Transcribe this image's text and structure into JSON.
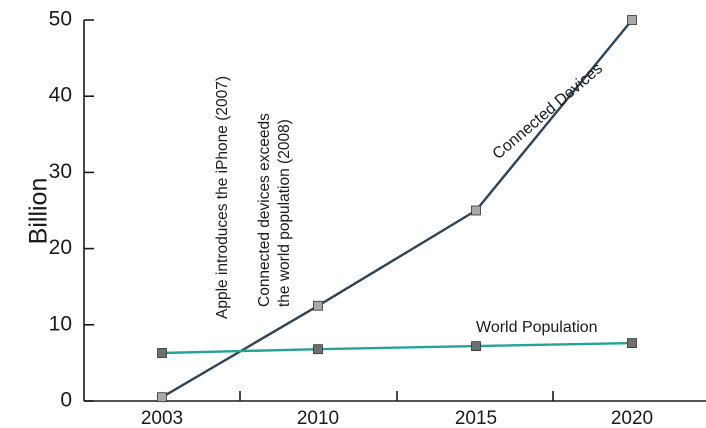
{
  "chart_data": {
    "type": "line",
    "title": "",
    "xlabel": "",
    "ylabel": "Billion",
    "ylim": [
      0,
      50
    ],
    "yticks": [
      "0",
      "10",
      "20",
      "30",
      "40",
      "50"
    ],
    "xticks": [
      "2003",
      "2010",
      "2015",
      "2020"
    ],
    "xlim": [
      2003,
      2020
    ],
    "grid": false,
    "series": [
      {
        "name": "Connected Devices",
        "color": "#2f4454",
        "marker_color": "#a8a8a8",
        "points": [
          [
            2003,
            0.5
          ],
          [
            2010,
            12.5
          ],
          [
            2015,
            25
          ],
          [
            2020,
            50
          ]
        ]
      },
      {
        "name": "World Population",
        "color": "#25a39a",
        "marker_color": "#6f6f6f",
        "points": [
          [
            2003,
            6.3
          ],
          [
            2010,
            6.8
          ],
          [
            2015,
            7.2
          ],
          [
            2020,
            7.6
          ]
        ]
      }
    ],
    "annotations": [
      {
        "x": 2006.5,
        "text": "Apple introduces the iPhone (2007)"
      },
      {
        "x": 2007.9,
        "lines": [
          "Connected devices exceeds",
          "the world population (2008)"
        ]
      }
    ]
  }
}
